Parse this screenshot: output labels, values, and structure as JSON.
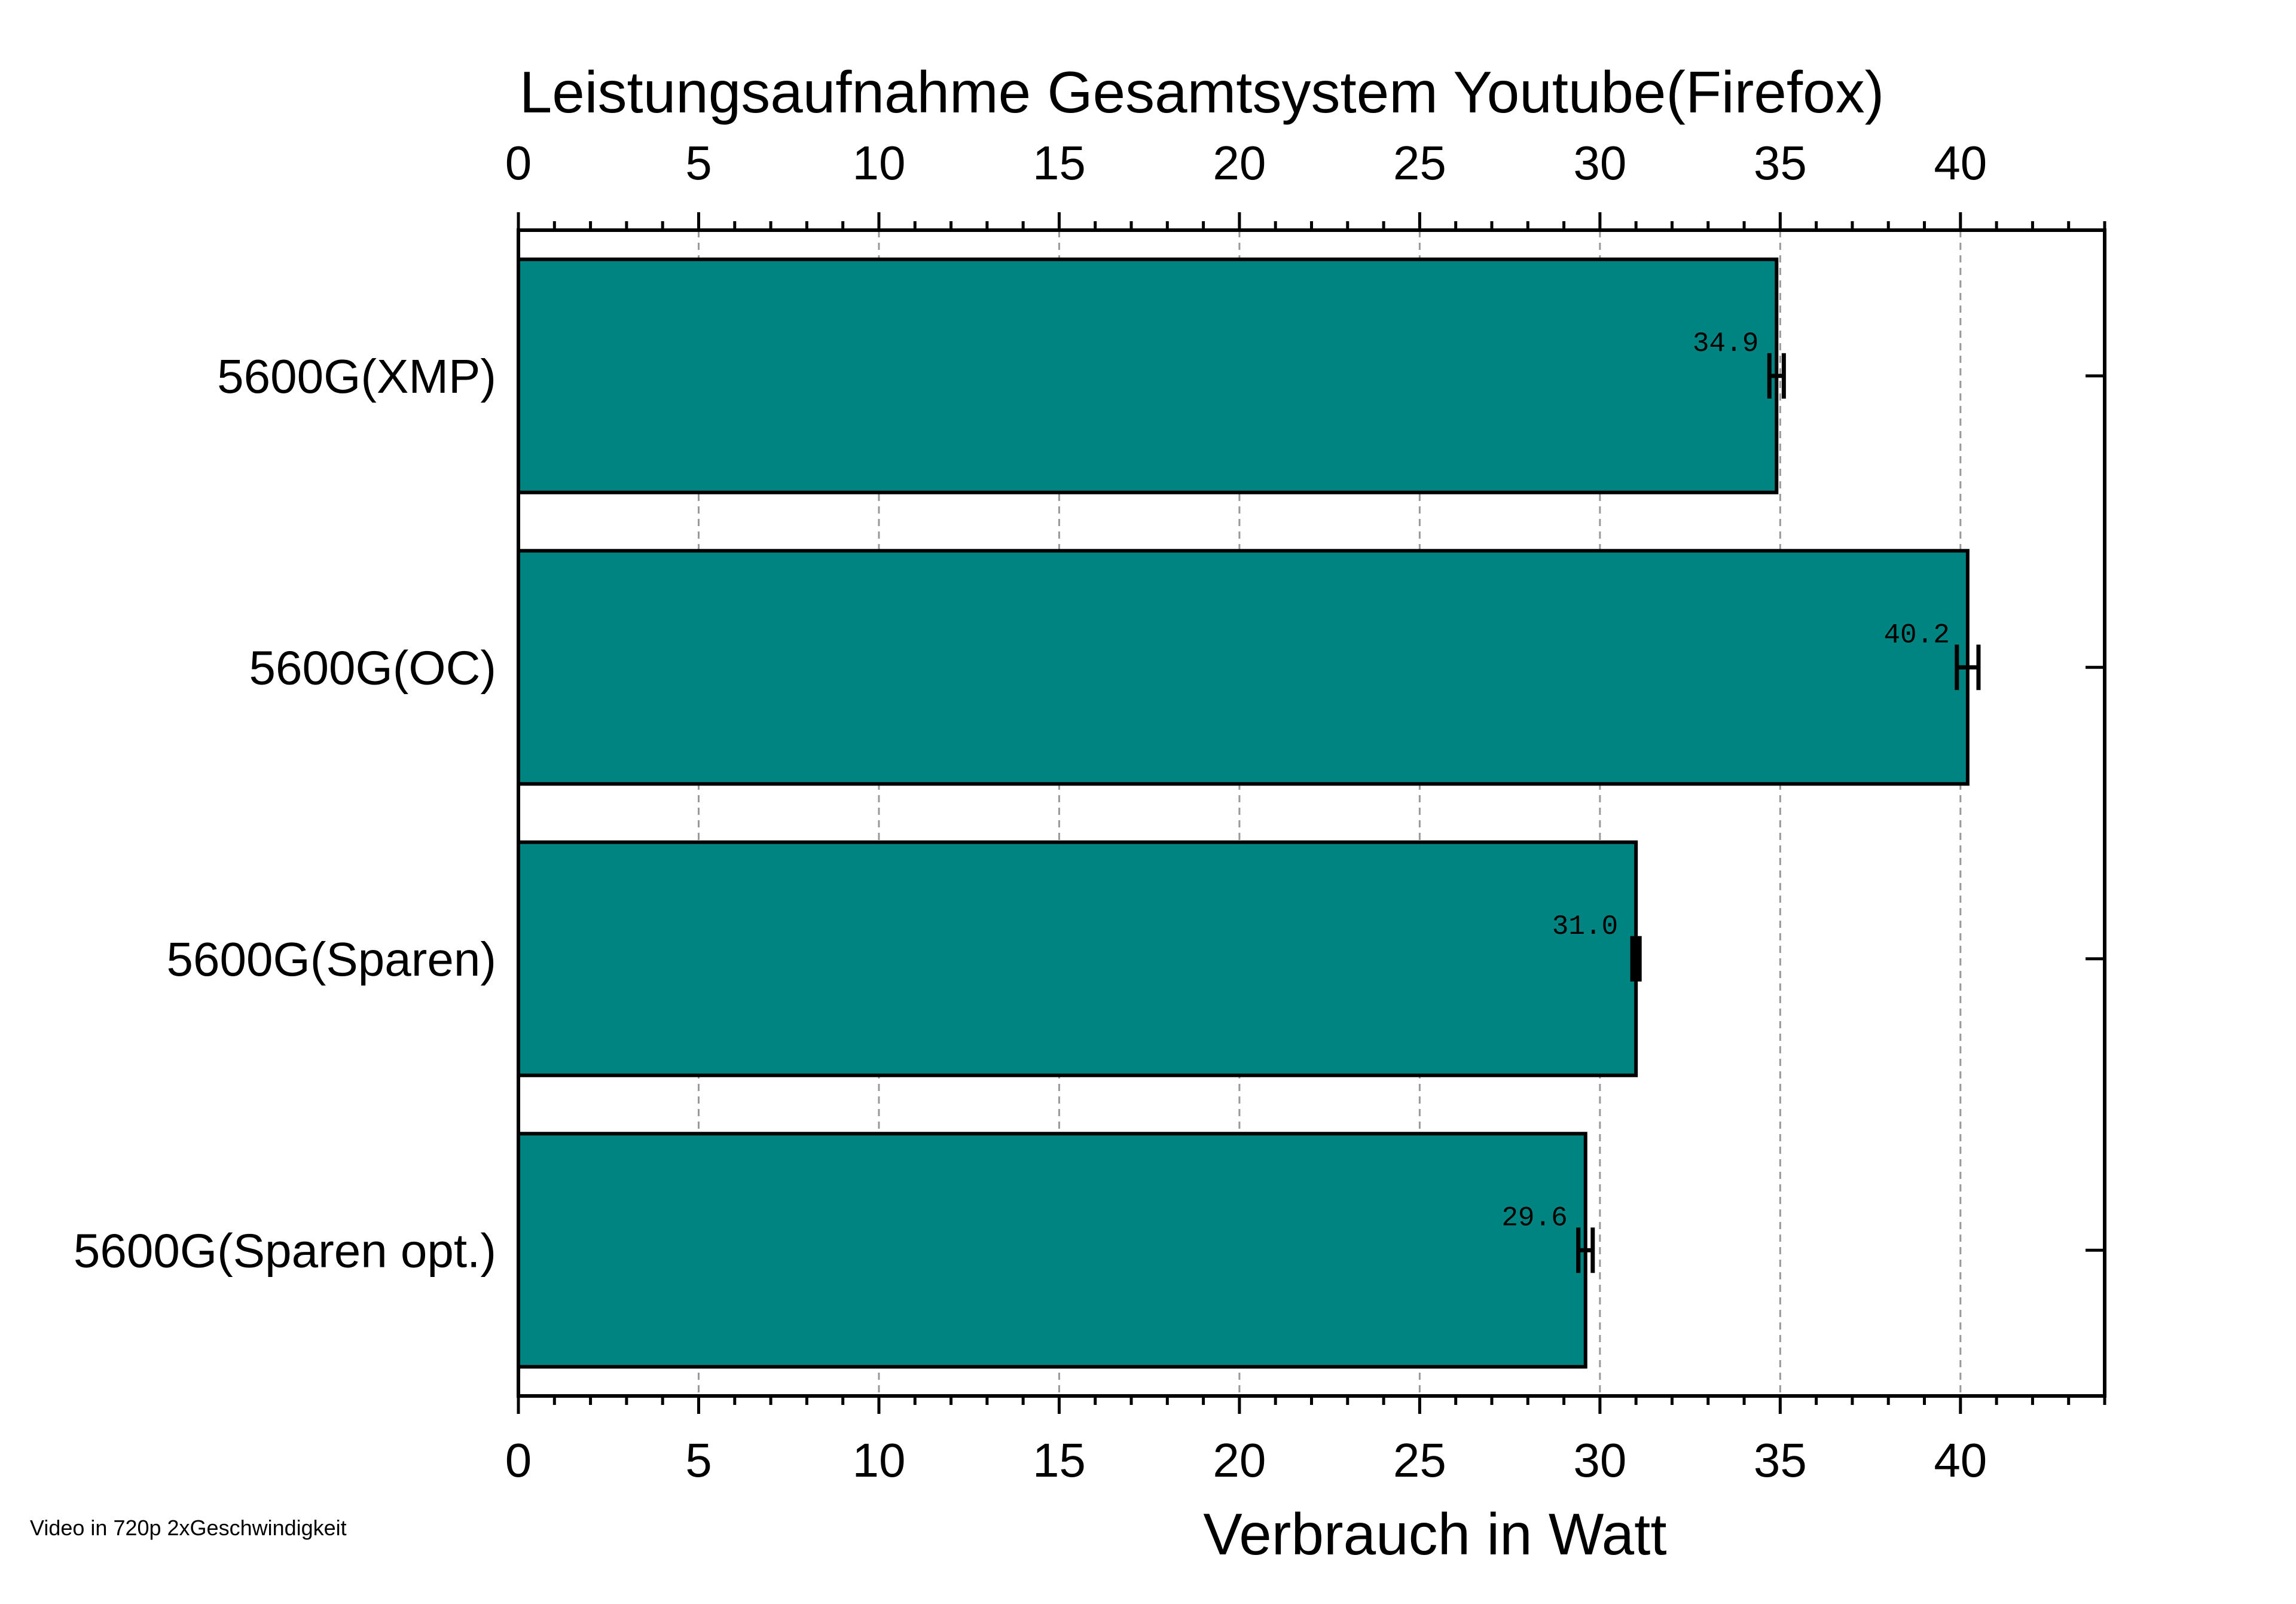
{
  "chart_data": {
    "type": "bar",
    "orientation": "horizontal",
    "title": "Leistungsaufnahme Gesamtsystem Youtube(Firefox)",
    "xlabel": "Verbrauch in Watt",
    "ylabel": "",
    "note": "Video in 720p 2xGeschwindigkeit",
    "categories": [
      "5600G(XMP)",
      "5600G(OC)",
      "5600G(Sparen)",
      "5600G(Sparen opt.)"
    ],
    "values": [
      34.9,
      40.2,
      31.0,
      29.6
    ],
    "value_labels": [
      "34.9",
      "40.2",
      "31.0",
      "29.6"
    ],
    "error": [
      0.2,
      0.3,
      0.1,
      0.2
    ],
    "xlim": [
      0,
      44
    ],
    "xticks": [
      0,
      5,
      10,
      15,
      20,
      25,
      30,
      35,
      40
    ],
    "xtick_labels": [
      "0",
      "5",
      "10",
      "15",
      "20",
      "25",
      "30",
      "35",
      "40"
    ],
    "xticks_on_top": true,
    "grid": "x-dashed",
    "bar_color": "#008482"
  }
}
